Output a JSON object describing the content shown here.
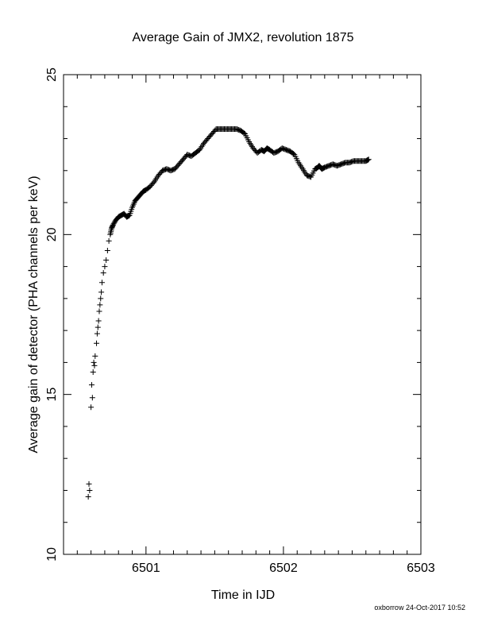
{
  "chart_data": {
    "type": "scatter",
    "title": "Average Gain of JMX2, revolution 1875",
    "xlabel": "Time in IJD",
    "ylabel": "Average gain of detector (PHA channels per keV)",
    "xlim": [
      6500.4,
      6503
    ],
    "ylim": [
      10,
      25
    ],
    "x_ticks": [
      6501,
      6502,
      6503
    ],
    "x_tick_labels": [
      "6501",
      "6502",
      "6503"
    ],
    "y_ticks": [
      10,
      15,
      20,
      25
    ],
    "y_tick_labels": [
      "10",
      "15",
      "20",
      "25"
    ],
    "grid": false,
    "marker": "plus",
    "color": "#000000",
    "series": [
      {
        "x": [
          6500.58,
          6500.585,
          6500.59,
          6500.6,
          6500.605,
          6500.61,
          6500.615,
          6500.62,
          6500.625,
          6500.63,
          6500.64,
          6500.645,
          6500.65,
          6500.655,
          6500.66,
          6500.665,
          6500.67,
          6500.675,
          6500.68,
          6500.69,
          6500.7,
          6500.71,
          6500.72,
          6500.73,
          6500.74,
          6500.75,
          6500.76,
          6500.78,
          6500.8,
          6500.82,
          6500.84,
          6500.86,
          6500.88,
          6500.9,
          6500.92,
          6500.94,
          6500.96,
          6500.98,
          6501.0,
          6501.03,
          6501.06,
          6501.09,
          6501.12,
          6501.15,
          6501.18,
          6501.21,
          6501.24,
          6501.27,
          6501.3,
          6501.33,
          6501.36,
          6501.39,
          6501.42,
          6501.45,
          6501.48,
          6501.51,
          6501.54,
          6501.57,
          6501.6,
          6501.63,
          6501.66,
          6501.69,
          6501.72,
          6501.75,
          6501.78,
          6501.81,
          6501.84,
          6501.86,
          6501.88,
          6501.9,
          6501.93,
          6501.96,
          6501.99,
          6502.02,
          6502.05,
          6502.08,
          6502.11,
          6502.14,
          6502.17,
          6502.2,
          6502.23,
          6502.25,
          6502.26,
          6502.27,
          6502.28,
          6502.3,
          6502.33,
          6502.36,
          6502.39,
          6502.42,
          6502.45,
          6502.48,
          6502.51,
          6502.54,
          6502.57,
          6502.6,
          6502.62
        ],
        "y": [
          11.8,
          12.2,
          12.0,
          14.6,
          15.3,
          14.9,
          15.7,
          16.0,
          15.9,
          16.2,
          16.6,
          16.9,
          17.1,
          17.3,
          17.6,
          17.8,
          18.0,
          18.2,
          18.5,
          18.8,
          19.0,
          19.2,
          19.5,
          19.8,
          20.0,
          20.2,
          20.3,
          20.45,
          20.55,
          20.6,
          20.65,
          20.55,
          20.6,
          20.85,
          21.05,
          21.15,
          21.25,
          21.35,
          21.4,
          21.5,
          21.65,
          21.85,
          22.0,
          22.05,
          22.0,
          22.05,
          22.2,
          22.35,
          22.5,
          22.45,
          22.55,
          22.65,
          22.85,
          23.0,
          23.15,
          23.3,
          23.3,
          23.3,
          23.3,
          23.3,
          23.3,
          23.25,
          23.15,
          22.9,
          22.7,
          22.55,
          22.65,
          22.6,
          22.7,
          22.65,
          22.55,
          22.6,
          22.7,
          22.65,
          22.6,
          22.5,
          22.25,
          22.05,
          21.85,
          21.8,
          22.05,
          22.1,
          22.15,
          22.1,
          22.05,
          22.1,
          22.15,
          22.2,
          22.15,
          22.2,
          22.25,
          22.25,
          22.3,
          22.3,
          22.3,
          22.3,
          22.35
        ]
      }
    ]
  },
  "footer": {
    "stamp": "oxborrow 24-Oct-2017 10:52"
  }
}
